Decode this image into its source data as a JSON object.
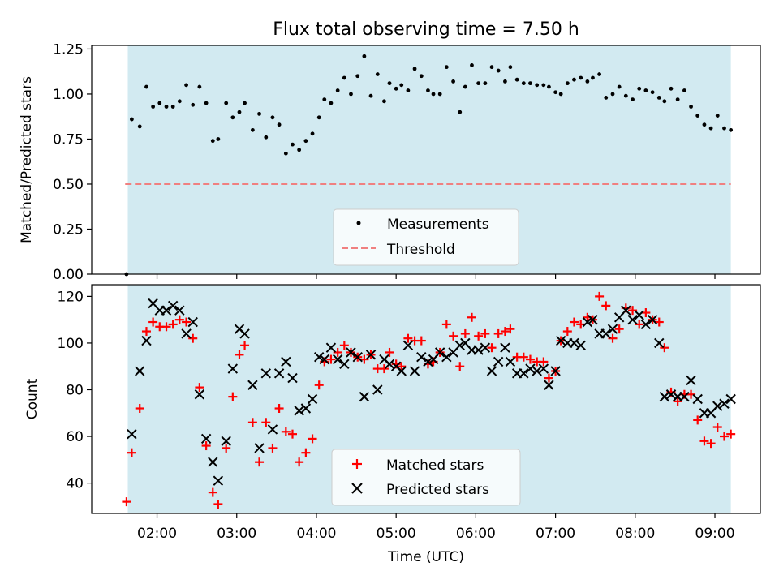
{
  "figure": {
    "title": "Flux total observing time = 7.50 h",
    "xlabel": "Time (UTC)"
  },
  "colors": {
    "shade": "#add8e6",
    "measure": "#000000",
    "threshold": "#f08080",
    "matched": "#ff0000",
    "predicted": "#000000"
  },
  "chart_data": [
    {
      "type": "scatter",
      "title": "Flux total observing time = 7.50 h",
      "ylabel": "Matched/Predicted stars",
      "xlabel": "",
      "x_unit": "hours UTC",
      "xlim": [
        1.18,
        9.57
      ],
      "ylim": [
        0,
        1.27
      ],
      "yticks": [
        "0.00",
        "0.25",
        "0.50",
        "0.75",
        "1.00",
        "1.25"
      ],
      "ytick_values": [
        0,
        0.25,
        0.5,
        0.75,
        1.0,
        1.25
      ],
      "shaded_span": [
        1.633,
        9.2
      ],
      "threshold": {
        "name": "Threshold",
        "value": 0.5,
        "x": [
          1.6,
          9.2
        ]
      },
      "legend": [
        "Measurements",
        "Threshold"
      ],
      "series": [
        {
          "name": "Measurements",
          "marker": "dot",
          "x": [
            1.617,
            1.683,
            1.783,
            1.867,
            1.95,
            2.033,
            2.117,
            2.2,
            2.283,
            2.367,
            2.45,
            2.533,
            2.617,
            2.7,
            2.767,
            2.867,
            2.95,
            3.033,
            3.1,
            3.2,
            3.283,
            3.367,
            3.45,
            3.533,
            3.617,
            3.7,
            3.783,
            3.867,
            3.95,
            4.033,
            4.1,
            4.183,
            4.267,
            4.35,
            4.433,
            4.517,
            4.6,
            4.683,
            4.767,
            4.85,
            4.917,
            5.0,
            5.067,
            5.15,
            5.233,
            5.317,
            5.4,
            5.467,
            5.55,
            5.633,
            5.717,
            5.8,
            5.867,
            5.95,
            6.033,
            6.117,
            6.2,
            6.283,
            6.367,
            6.433,
            6.517,
            6.6,
            6.683,
            6.767,
            6.85,
            6.917,
            7.0,
            7.067,
            7.15,
            7.233,
            7.317,
            7.4,
            7.467,
            7.55,
            7.633,
            7.717,
            7.8,
            7.883,
            7.967,
            8.05,
            8.133,
            8.217,
            8.3,
            8.367,
            8.45,
            8.533,
            8.617,
            8.7,
            8.783,
            8.867,
            8.95,
            9.033,
            9.117,
            9.2
          ],
          "y": [
            0.0,
            0.86,
            0.82,
            1.04,
            0.93,
            0.95,
            0.93,
            0.93,
            0.96,
            1.05,
            0.94,
            1.04,
            0.95,
            0.74,
            0.75,
            0.95,
            0.87,
            0.9,
            0.95,
            0.8,
            0.89,
            0.76,
            0.87,
            0.83,
            0.67,
            0.72,
            0.69,
            0.74,
            0.78,
            0.87,
            0.97,
            0.95,
            1.02,
            1.09,
            1.0,
            1.1,
            1.21,
            0.99,
            1.11,
            0.96,
            1.06,
            1.03,
            1.05,
            1.02,
            1.14,
            1.1,
            1.02,
            1.0,
            1.0,
            1.15,
            1.07,
            0.9,
            1.04,
            1.16,
            1.06,
            1.06,
            1.15,
            1.13,
            1.07,
            1.15,
            1.08,
            1.06,
            1.06,
            1.05,
            1.05,
            1.04,
            1.01,
            1.0,
            1.06,
            1.08,
            1.09,
            1.07,
            1.09,
            1.11,
            0.98,
            1.0,
            1.04,
            0.99,
            0.97,
            1.03,
            1.02,
            1.01,
            0.98,
            0.96,
            1.03,
            0.97,
            1.02,
            0.93,
            0.88,
            0.83,
            0.81,
            0.88,
            0.81,
            0.8
          ]
        }
      ]
    },
    {
      "type": "scatter",
      "title": "",
      "ylabel": "Count",
      "xlabel": "Time (UTC)",
      "x_unit": "hours UTC",
      "xlim": [
        1.18,
        9.57
      ],
      "ylim": [
        27,
        125
      ],
      "yticks": [
        "40",
        "60",
        "80",
        "100",
        "120"
      ],
      "ytick_values": [
        40,
        60,
        80,
        100,
        120
      ],
      "xticks": [
        "02:00",
        "03:00",
        "04:00",
        "05:00",
        "06:00",
        "07:00",
        "08:00",
        "09:00"
      ],
      "xtick_values": [
        2,
        3,
        4,
        5,
        6,
        7,
        8,
        9
      ],
      "shaded_span": [
        1.633,
        9.2
      ],
      "legend": [
        "Matched stars",
        "Predicted stars"
      ],
      "series": [
        {
          "name": "Matched stars",
          "marker": "plus",
          "x": [
            1.617,
            1.683,
            1.783,
            1.867,
            1.95,
            2.033,
            2.117,
            2.2,
            2.283,
            2.367,
            2.45,
            2.533,
            2.617,
            2.7,
            2.767,
            2.867,
            2.95,
            3.033,
            3.1,
            3.2,
            3.283,
            3.367,
            3.45,
            3.533,
            3.617,
            3.7,
            3.783,
            3.867,
            3.95,
            4.033,
            4.1,
            4.183,
            4.267,
            4.35,
            4.433,
            4.517,
            4.6,
            4.683,
            4.767,
            4.85,
            4.917,
            5.0,
            5.067,
            5.15,
            5.233,
            5.317,
            5.4,
            5.467,
            5.55,
            5.633,
            5.717,
            5.8,
            5.867,
            5.95,
            6.033,
            6.117,
            6.2,
            6.283,
            6.367,
            6.433,
            6.517,
            6.6,
            6.683,
            6.767,
            6.85,
            6.917,
            7.0,
            7.067,
            7.15,
            7.233,
            7.317,
            7.4,
            7.467,
            7.55,
            7.633,
            7.717,
            7.8,
            7.883,
            7.967,
            8.05,
            8.133,
            8.217,
            8.3,
            8.367,
            8.45,
            8.533,
            8.617,
            8.7,
            8.783,
            8.867,
            8.95,
            9.033,
            9.117,
            9.2
          ],
          "y": [
            32,
            53,
            72,
            105,
            109,
            107,
            107,
            108,
            110,
            109,
            102,
            81,
            56,
            36,
            31,
            55,
            77,
            95,
            99,
            66,
            49,
            66,
            55,
            72,
            62,
            61,
            49,
            53,
            59,
            82,
            92,
            93,
            96,
            99,
            96,
            94,
            93,
            95,
            89,
            89,
            96,
            91,
            90,
            102,
            101,
            101,
            91,
            92,
            96,
            108,
            103,
            90,
            104,
            111,
            103,
            104,
            98,
            104,
            105,
            106,
            94,
            94,
            93,
            92,
            92,
            85,
            88,
            101,
            105,
            109,
            108,
            111,
            110,
            120,
            116,
            102,
            106,
            115,
            114,
            108,
            113,
            110,
            109,
            98,
            79,
            75,
            78,
            78,
            67,
            58,
            57,
            64,
            60,
            61
          ]
        },
        {
          "name": "Predicted stars",
          "marker": "x",
          "x": [
            1.683,
            1.783,
            1.867,
            1.95,
            2.033,
            2.117,
            2.2,
            2.283,
            2.367,
            2.45,
            2.533,
            2.617,
            2.7,
            2.767,
            2.867,
            2.95,
            3.033,
            3.1,
            3.2,
            3.283,
            3.367,
            3.45,
            3.533,
            3.617,
            3.7,
            3.783,
            3.867,
            3.95,
            4.033,
            4.1,
            4.183,
            4.267,
            4.35,
            4.433,
            4.517,
            4.6,
            4.683,
            4.767,
            4.85,
            4.917,
            5.0,
            5.067,
            5.15,
            5.233,
            5.317,
            5.4,
            5.467,
            5.55,
            5.633,
            5.717,
            5.8,
            5.867,
            5.95,
            6.033,
            6.117,
            6.2,
            6.283,
            6.367,
            6.433,
            6.517,
            6.6,
            6.683,
            6.767,
            6.85,
            6.917,
            7.0,
            7.067,
            7.15,
            7.233,
            7.317,
            7.4,
            7.467,
            7.55,
            7.633,
            7.717,
            7.8,
            7.883,
            7.967,
            8.05,
            8.133,
            8.217,
            8.3,
            8.367,
            8.45,
            8.533,
            8.617,
            8.7,
            8.783,
            8.867,
            8.95,
            9.033,
            9.117,
            9.2
          ],
          "y": [
            61,
            88,
            101,
            117,
            114,
            114,
            116,
            114,
            104,
            109,
            78,
            59,
            49,
            41,
            58,
            89,
            106,
            104,
            82,
            55,
            87,
            63,
            87,
            92,
            85,
            71,
            72,
            76,
            94,
            93,
            98,
            93,
            91,
            96,
            94,
            77,
            95,
            80,
            93,
            91,
            90,
            88,
            99,
            88,
            94,
            92,
            93,
            96,
            94,
            96,
            99,
            100,
            97,
            97,
            98,
            88,
            92,
            98,
            92,
            87,
            87,
            89,
            88,
            89,
            82,
            88,
            101,
            100,
            100,
            99,
            109,
            110,
            104,
            104,
            106,
            111,
            114,
            110,
            112,
            108,
            110,
            100,
            77,
            78,
            77,
            77,
            84,
            76,
            70,
            70,
            73,
            74,
            76
          ]
        }
      ]
    }
  ]
}
